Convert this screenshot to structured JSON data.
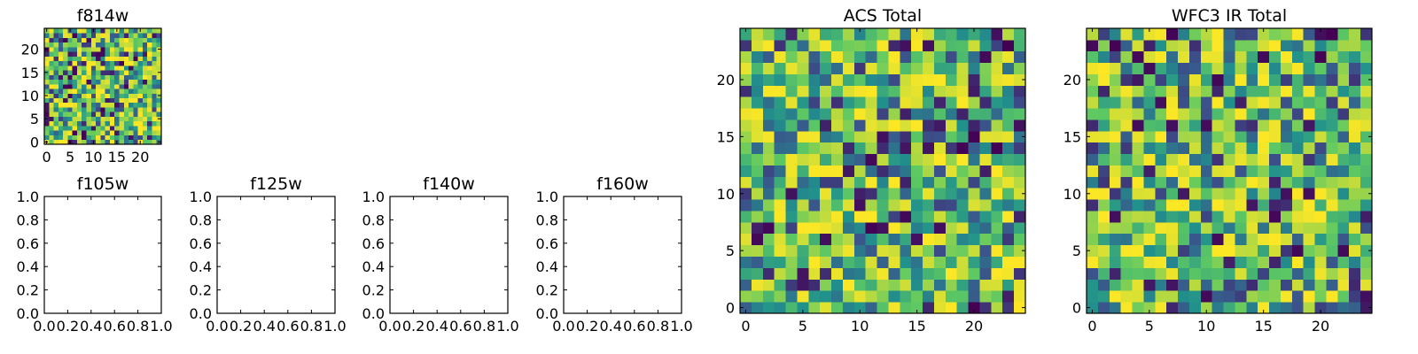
{
  "colormap": [
    "#440154",
    "#3b528b",
    "#21918c",
    "#5ec962",
    "#fde725"
  ],
  "chart_data": [
    {
      "id": "f814w",
      "type": "heatmap",
      "title": "f814w",
      "grid_size": 25,
      "xlim": [
        -0.5,
        24.5
      ],
      "ylim": [
        -0.5,
        24.5
      ],
      "x_ticks": [
        0,
        5,
        10,
        15,
        20
      ],
      "y_ticks": [
        0,
        5,
        10,
        15,
        20
      ],
      "value_range": [
        0,
        1
      ],
      "seed": 814
    },
    {
      "id": "f105w",
      "type": "heatmap",
      "title": "f105w",
      "empty": true,
      "xlim": [
        0,
        1
      ],
      "ylim": [
        0,
        1
      ],
      "x_ticks": [
        "0.0",
        "0.2",
        "0.4",
        "0.6",
        "0.8",
        "1.0"
      ],
      "y_ticks": [
        "0.0",
        "0.2",
        "0.4",
        "0.6",
        "0.8",
        "1.0"
      ]
    },
    {
      "id": "f125w",
      "type": "heatmap",
      "title": "f125w",
      "empty": true,
      "xlim": [
        0,
        1
      ],
      "ylim": [
        0,
        1
      ],
      "x_ticks": [
        "0.0",
        "0.2",
        "0.4",
        "0.6",
        "0.8",
        "1.0"
      ],
      "y_ticks": [
        "0.0",
        "0.2",
        "0.4",
        "0.6",
        "0.8",
        "1.0"
      ]
    },
    {
      "id": "f140w",
      "type": "heatmap",
      "title": "f140w",
      "empty": true,
      "xlim": [
        0,
        1
      ],
      "ylim": [
        0,
        1
      ],
      "x_ticks": [
        "0.0",
        "0.2",
        "0.4",
        "0.6",
        "0.8",
        "1.0"
      ],
      "y_ticks": [
        "0.0",
        "0.2",
        "0.4",
        "0.6",
        "0.8",
        "1.0"
      ]
    },
    {
      "id": "f160w",
      "type": "heatmap",
      "title": "f160w",
      "empty": true,
      "xlim": [
        0,
        1
      ],
      "ylim": [
        0,
        1
      ],
      "x_ticks": [
        "0.0",
        "0.2",
        "0.4",
        "0.6",
        "0.8",
        "1.0"
      ],
      "y_ticks": [
        "0.0",
        "0.2",
        "0.4",
        "0.6",
        "0.8",
        "1.0"
      ]
    },
    {
      "id": "acs-total",
      "type": "heatmap",
      "title": "ACS Total",
      "grid_size": 25,
      "xlim": [
        -0.5,
        24.5
      ],
      "ylim": [
        -0.5,
        24.5
      ],
      "x_ticks": [
        0,
        5,
        10,
        15,
        20
      ],
      "y_ticks": [
        0,
        5,
        10,
        15,
        20
      ],
      "value_range": [
        0,
        1
      ],
      "seed": 2024
    },
    {
      "id": "wfc3-ir-total",
      "type": "heatmap",
      "title": "WFC3 IR Total",
      "grid_size": 25,
      "xlim": [
        -0.5,
        24.5
      ],
      "ylim": [
        -0.5,
        24.5
      ],
      "x_ticks": [
        0,
        5,
        10,
        15,
        20
      ],
      "y_ticks": [
        0,
        5,
        10,
        15,
        20
      ],
      "value_range": [
        0,
        1
      ],
      "seed": 31
    }
  ]
}
